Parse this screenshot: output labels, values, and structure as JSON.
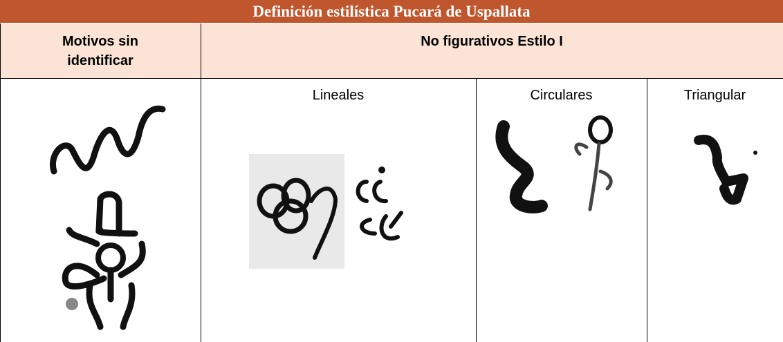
{
  "header": {
    "title": "Definición estilística Pucará de Uspallata"
  },
  "table": {
    "header_row": [
      "Motivos sin identificar",
      "No figurativos Estilo I"
    ],
    "subheaders": [
      "Lineales",
      "Circulares",
      "Triangular"
    ]
  }
}
